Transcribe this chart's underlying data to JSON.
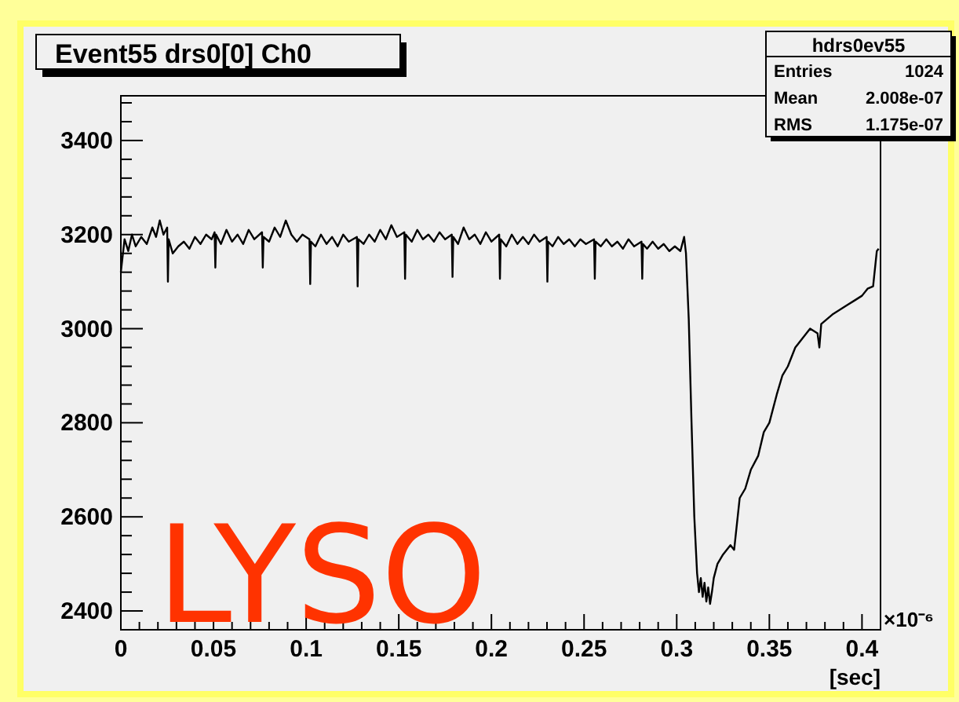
{
  "chart_data": {
    "type": "line",
    "title": "Event55 drs0[0] Ch0",
    "xlabel": "[sec]",
    "annotations": [
      "hdrs0ev55",
      "Entries",
      "1024",
      "Mean",
      "2.008e-07",
      "RMS",
      "1.175e-07",
      "LYSO",
      "×10⁻⁶"
    ],
    "marker": "none",
    "line_style": "solid",
    "grid": false,
    "xlim": [
      0,
      0.41
    ],
    "ylim": [
      2360,
      3495
    ],
    "xticks": [
      0,
      {
        "value": 0.01,
        "label": null
      },
      {
        "value": 0.02,
        "label": null
      },
      {
        "value": 0.03,
        "label": null
      },
      {
        "value": 0.04,
        "label": null
      },
      {
        "value": 0.05,
        "label": "0.05"
      },
      {
        "value": 0.06,
        "label": null
      },
      {
        "value": 0.07,
        "label": null
      },
      {
        "value": 0.08,
        "label": null
      },
      {
        "value": 0.09,
        "label": null
      },
      0.1,
      {
        "value": 0.11,
        "label": null
      },
      {
        "value": 0.12,
        "label": null
      },
      {
        "value": 0.13,
        "label": null
      },
      {
        "value": 0.14,
        "label": null
      },
      0.15,
      {
        "value": 0.16,
        "label": null
      },
      {
        "value": 0.17,
        "label": null
      },
      {
        "value": 0.18,
        "label": null
      },
      {
        "value": 0.19,
        "label": null
      },
      0.2,
      {
        "value": 0.21,
        "label": null
      },
      {
        "value": 0.22,
        "label": null
      },
      {
        "value": 0.23,
        "label": null
      },
      {
        "value": 0.24,
        "label": null
      },
      0.25,
      {
        "value": 0.26,
        "label": null
      },
      {
        "value": 0.27,
        "label": null
      },
      {
        "value": 0.28,
        "label": null
      },
      {
        "value": 0.29,
        "label": null
      },
      0.3,
      {
        "value": 0.31,
        "label": null
      },
      {
        "value": 0.32,
        "label": null
      },
      {
        "value": 0.33,
        "label": null
      },
      {
        "value": 0.34,
        "label": null
      },
      0.35,
      {
        "value": 0.36,
        "label": null
      },
      {
        "value": 0.37,
        "label": null
      },
      {
        "value": 0.38,
        "label": null
      },
      {
        "value": 0.39,
        "label": null
      },
      0.4
    ],
    "yticks": [
      {
        "value": 2360,
        "label": null
      },
      2400,
      {
        "value": 2440,
        "label": null
      },
      {
        "value": 2480,
        "label": null
      },
      {
        "value": 2520,
        "label": null
      },
      {
        "value": 2560,
        "label": null
      },
      2600,
      {
        "value": 2640,
        "label": null
      },
      {
        "value": 2680,
        "label": null
      },
      {
        "value": 2720,
        "label": null
      },
      {
        "value": 2760,
        "label": null
      },
      2800,
      {
        "value": 2840,
        "label": null
      },
      {
        "value": 2880,
        "label": null
      },
      {
        "value": 2920,
        "label": null
      },
      {
        "value": 2960,
        "label": null
      },
      3000,
      {
        "value": 3040,
        "label": null
      },
      {
        "value": 3080,
        "label": null
      },
      {
        "value": 3120,
        "label": null
      },
      {
        "value": 3160,
        "label": null
      },
      3200,
      {
        "value": 3240,
        "label": null
      },
      {
        "value": 3280,
        "label": null
      },
      {
        "value": 3320,
        "label": null
      },
      {
        "value": 3360,
        "label": null
      },
      3400,
      {
        "value": 3440,
        "label": null
      },
      {
        "value": 3480,
        "label": null
      }
    ],
    "series": [
      {
        "color": "#000000",
        "x": [
          0,
          0.002,
          0.004,
          0.006,
          0.008,
          0.011,
          0.014,
          0.017,
          0.019,
          0.021,
          0.023,
          0.025,
          0.0254,
          0.0258,
          0.028,
          0.031,
          0.034,
          0.037,
          0.04,
          0.043,
          0.046,
          0.049,
          0.0506,
          0.051,
          0.0514,
          0.054,
          0.057,
          0.06,
          0.063,
          0.066,
          0.069,
          0.072,
          0.0762,
          0.0766,
          0.077,
          0.08,
          0.083,
          0.086,
          0.089,
          0.092,
          0.095,
          0.098,
          0.1018,
          0.1022,
          0.1026,
          0.105,
          0.108,
          0.111,
          0.114,
          0.117,
          0.12,
          0.123,
          0.1274,
          0.1278,
          0.1282,
          0.131,
          0.134,
          0.137,
          0.14,
          0.143,
          0.146,
          0.149,
          0.153,
          0.1534,
          0.1538,
          0.157,
          0.16,
          0.163,
          0.166,
          0.169,
          0.172,
          0.175,
          0.1786,
          0.179,
          0.1794,
          0.182,
          0.185,
          0.188,
          0.191,
          0.194,
          0.197,
          0.2,
          0.2042,
          0.2046,
          0.205,
          0.208,
          0.211,
          0.214,
          0.217,
          0.22,
          0.223,
          0.226,
          0.2298,
          0.2302,
          0.2306,
          0.233,
          0.236,
          0.239,
          0.242,
          0.245,
          0.248,
          0.251,
          0.2554,
          0.2558,
          0.2562,
          0.259,
          0.262,
          0.265,
          0.268,
          0.271,
          0.274,
          0.277,
          0.281,
          0.2814,
          0.2818,
          0.284,
          0.287,
          0.29,
          0.293,
          0.296,
          0.299,
          0.302,
          0.304,
          0.305,
          0.3065,
          0.308,
          0.3095,
          0.311,
          0.312,
          0.313,
          0.314,
          0.315,
          0.316,
          0.317,
          0.318,
          0.319,
          0.32,
          0.322,
          0.325,
          0.329,
          0.331,
          0.334,
          0.337,
          0.34,
          0.344,
          0.347,
          0.35,
          0.354,
          0.357,
          0.36,
          0.364,
          0.368,
          0.372,
          0.376,
          0.377,
          0.378,
          0.381,
          0.384,
          0.388,
          0.392,
          0.396,
          0.4,
          0.403,
          0.406,
          0.408,
          0.409
        ],
        "values": [
          3120,
          3190,
          3165,
          3200,
          3175,
          3195,
          3180,
          3215,
          3195,
          3230,
          3200,
          3215,
          3100,
          3190,
          3160,
          3175,
          3185,
          3170,
          3195,
          3180,
          3200,
          3190,
          3205,
          3130,
          3200,
          3180,
          3210,
          3185,
          3200,
          3180,
          3210,
          3190,
          3205,
          3130,
          3195,
          3185,
          3215,
          3195,
          3230,
          3200,
          3185,
          3200,
          3190,
          3095,
          3185,
          3175,
          3200,
          3180,
          3195,
          3175,
          3200,
          3185,
          3195,
          3090,
          3190,
          3180,
          3200,
          3185,
          3210,
          3190,
          3220,
          3195,
          3205,
          3106,
          3200,
          3185,
          3210,
          3190,
          3200,
          3185,
          3205,
          3190,
          3200,
          3110,
          3195,
          3180,
          3215,
          3190,
          3200,
          3180,
          3205,
          3185,
          3200,
          3106,
          3190,
          3175,
          3200,
          3180,
          3195,
          3180,
          3200,
          3185,
          3195,
          3100,
          3185,
          3175,
          3195,
          3180,
          3190,
          3175,
          3190,
          3180,
          3190,
          3106,
          3185,
          3175,
          3190,
          3175,
          3185,
          3170,
          3190,
          3175,
          3185,
          3106,
          3180,
          3170,
          3185,
          3170,
          3180,
          3165,
          3175,
          3165,
          3195,
          3160,
          3020,
          2800,
          2600,
          2480,
          2440,
          2470,
          2430,
          2460,
          2420,
          2450,
          2415,
          2440,
          2470,
          2500,
          2520,
          2540,
          2530,
          2640,
          2660,
          2700,
          2730,
          2780,
          2800,
          2860,
          2900,
          2920,
          2960,
          2980,
          3000,
          2990,
          2960,
          3010,
          3020,
          3030,
          3040,
          3050,
          3060,
          3070,
          3085,
          3090,
          3165,
          3170
        ]
      }
    ]
  }
}
